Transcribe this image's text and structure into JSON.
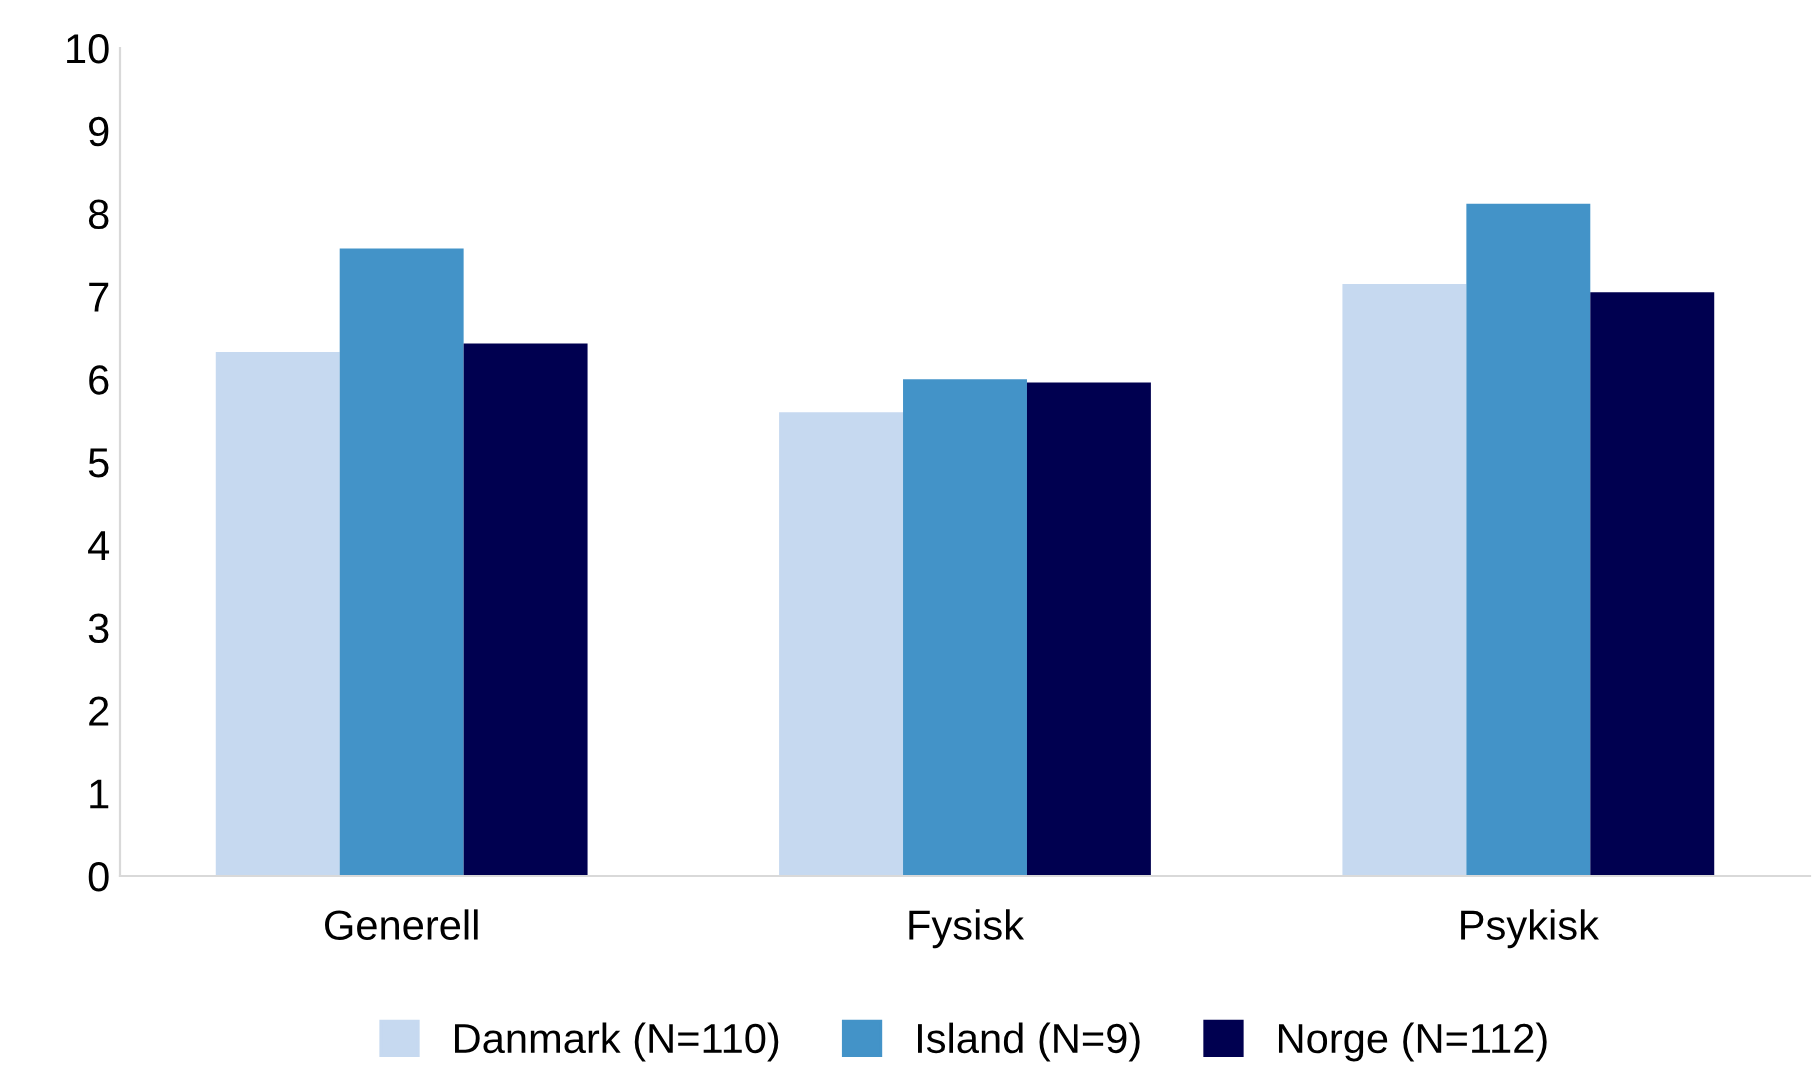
{
  "chart_data": {
    "type": "bar",
    "categories": [
      "Generell",
      "Fysisk",
      "Psykisk"
    ],
    "series": [
      {
        "name": "Danmark (N=110)",
        "color": "#c6d9f0",
        "values": [
          6.33,
          5.6,
          7.15
        ]
      },
      {
        "name": "Island (N=9)",
        "color": "#4393c8",
        "values": [
          7.58,
          6.0,
          8.12
        ]
      },
      {
        "name": "Norge (N=112)",
        "color": "#000050",
        "values": [
          6.43,
          5.96,
          7.05
        ]
      }
    ],
    "ylim": [
      0,
      10
    ],
    "yticks": [
      0,
      1,
      2,
      3,
      4,
      5,
      6,
      7,
      8,
      9,
      10
    ],
    "grid": false,
    "legend": "bottom"
  }
}
